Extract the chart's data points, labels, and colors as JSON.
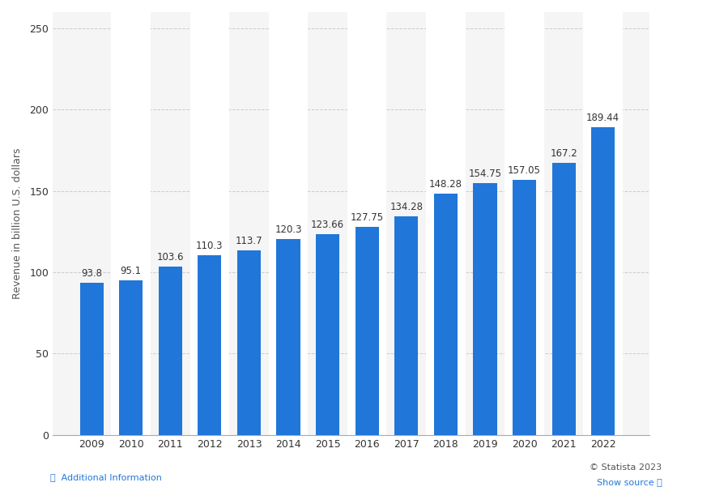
{
  "years": [
    "2009",
    "2010",
    "2011",
    "2012",
    "2013",
    "2014",
    "2015",
    "2016",
    "2017",
    "2018",
    "2019",
    "2020",
    "2021",
    "2022"
  ],
  "values": [
    93.8,
    95.1,
    103.6,
    110.3,
    113.7,
    120.3,
    123.66,
    127.75,
    134.28,
    148.28,
    154.75,
    157.05,
    167.2,
    189.44
  ],
  "bar_color": "#2176d9",
  "background_color": "#ffffff",
  "plot_bg_color": "#f5f5f5",
  "ylabel": "Revenue in billion U.S. dollars",
  "ylim": [
    0,
    260
  ],
  "yticks": [
    0,
    50,
    100,
    150,
    200,
    250
  ],
  "grid_color": "#cccccc",
  "label_fontsize": 9,
  "tick_fontsize": 9,
  "value_label_fontsize": 8.5,
  "bar_width": 0.6,
  "footer_text_left": "ⓘ  Additional Information",
  "footer_text_right_1": "© Statista 2023",
  "footer_text_right_2": "Show source ⓘ"
}
